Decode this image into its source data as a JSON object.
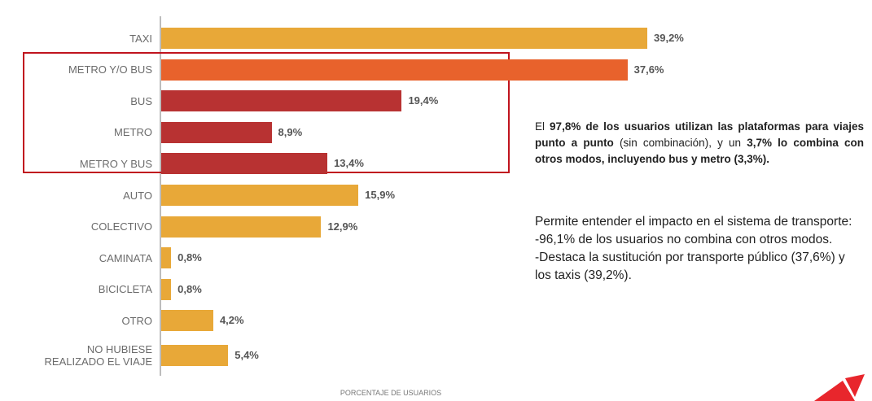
{
  "chart_data": {
    "type": "bar",
    "orientation": "horizontal",
    "categories": [
      "TAXI",
      "METRO Y/O BUS",
      "BUS",
      "METRO",
      "METRO Y BUS",
      "AUTO",
      "COLECTIVO",
      "CAMINATA",
      "BICICLETA",
      "OTRO",
      "NO HUBIESE REALIZADO EL VIAJE"
    ],
    "values": [
      39.2,
      37.6,
      19.4,
      8.9,
      13.4,
      15.9,
      12.9,
      0.8,
      0.8,
      4.2,
      5.4
    ],
    "value_labels": [
      "39,2%",
      "37,6%",
      "19,4%",
      "8,9%",
      "13,4%",
      "15,9%",
      "12,9%",
      "0,8%",
      "0,8%",
      "4,2%",
      "5,4%"
    ],
    "colors": [
      "#e8a838",
      "#e8622c",
      "#b83232",
      "#b83232",
      "#b83232",
      "#e8a838",
      "#e8a838",
      "#e8a838",
      "#e8a838",
      "#e8a838",
      "#e8a838"
    ],
    "xlabel": "PORCENTAJE DE USUARIOS"
  },
  "notes": {
    "paragraph1": [
      {
        "text": "El ",
        "bold": false
      },
      {
        "text": "97,8% de los usuarios utilizan las plataformas para viajes punto a punto",
        "bold": true
      },
      {
        "text": " (sin combinación), y un ",
        "bold": false
      },
      {
        "text": "3,7% lo combina con otros modos, incluyendo bus y metro (3,3%).",
        "bold": true
      }
    ],
    "paragraph2": [
      "Permite entender el impacto en el sistema de transporte:",
      "-96,1% de los usuarios no combina con otros modos.",
      "-Destaca la sustitución por transporte público (37,6%) y los taxis (39,2%)."
    ]
  }
}
